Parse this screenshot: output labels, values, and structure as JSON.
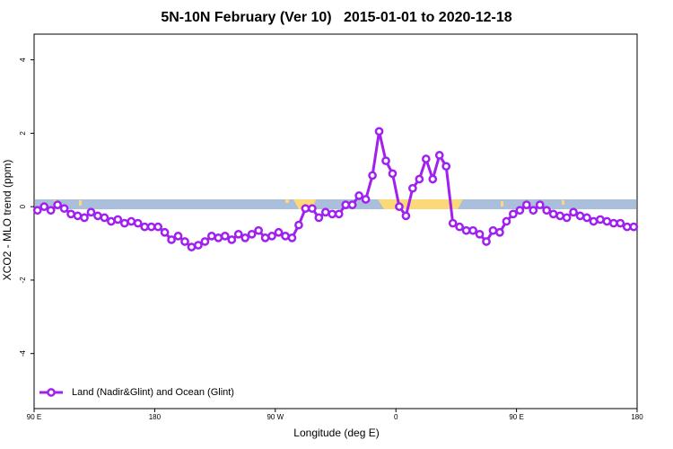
{
  "chart_data": {
    "type": "line",
    "title": "5N-10N February (Ver 10)   2015-01-01 to 2020-12-18",
    "x_label": "Longitude (deg E)",
    "y_label": "XCO2 - MLO trend (ppm)",
    "x": [
      92.5,
      97.5,
      102.5,
      107.5,
      112.5,
      117.5,
      122.5,
      127.5,
      132.5,
      137.5,
      142.5,
      147.5,
      152.5,
      157.5,
      162.5,
      167.5,
      172.5,
      177.5,
      182.5,
      187.5,
      192.5,
      197.5,
      202.5,
      207.5,
      212.5,
      217.5,
      222.5,
      227.5,
      232.5,
      237.5,
      242.5,
      247.5,
      252.5,
      257.5,
      262.5,
      267.5,
      272.5,
      277.5,
      282.5,
      287.5,
      292.5,
      297.5,
      302.5,
      307.5,
      312.5,
      317.5,
      322.5,
      327.5,
      332.5,
      337.5,
      342.5,
      347.5,
      352.5,
      357.5,
      362.5,
      367.5,
      372.5,
      377.5,
      382.5,
      387.5,
      392.5,
      397.5,
      402.5,
      407.5,
      412.5,
      417.5,
      422.5,
      427.5,
      432.5,
      437.5,
      442.5,
      447.5,
      452.5,
      457.5,
      462.5,
      467.5,
      472.5,
      477.5,
      482.5,
      487.5,
      492.5,
      497.5,
      502.5,
      507.5,
      512.5,
      517.5,
      522.5,
      527.5,
      532.5,
      537.5
    ],
    "series": [
      {
        "name": "Land (Nadir&Glint) and Ocean (Glint)",
        "color": "#a020f0",
        "values": [
          -0.1,
          0.0,
          -0.1,
          0.05,
          -0.05,
          -0.2,
          -0.25,
          -0.3,
          -0.15,
          -0.25,
          -0.3,
          -0.4,
          -0.35,
          -0.45,
          -0.4,
          -0.45,
          -0.55,
          -0.55,
          -0.55,
          -0.7,
          -0.9,
          -0.8,
          -0.95,
          -1.1,
          -1.05,
          -0.95,
          -0.8,
          -0.85,
          -0.8,
          -0.9,
          -0.75,
          -0.85,
          -0.75,
          -0.65,
          -0.85,
          -0.8,
          -0.7,
          -0.8,
          -0.85,
          -0.5,
          -0.05,
          -0.05,
          -0.3,
          -0.15,
          -0.2,
          -0.2,
          0.05,
          0.05,
          0.3,
          0.2,
          0.85,
          2.05,
          1.25,
          0.9,
          0.0,
          -0.25,
          0.5,
          0.75,
          1.3,
          0.75,
          1.4,
          1.1,
          -0.45,
          -0.55,
          -0.65,
          -0.65,
          -0.75,
          -0.95,
          -0.65,
          -0.7,
          -0.4,
          -0.2,
          -0.1,
          0.05,
          -0.1,
          0.05,
          -0.1,
          -0.2,
          -0.25,
          -0.3,
          -0.15,
          -0.25,
          -0.3,
          -0.4,
          -0.35,
          -0.4,
          -0.45,
          -0.45,
          -0.55,
          -0.55
        ]
      }
    ],
    "xlim": [
      90,
      540
    ],
    "xticks": [
      {
        "value": 90,
        "label": "90 E"
      },
      180,
      {
        "value": 270,
        "label": "90 W"
      },
      {
        "value": 360,
        "label": "0"
      },
      {
        "value": 450,
        "label": "90 E"
      },
      {
        "value": 540,
        "label": "180"
      }
    ],
    "ylim": [
      -5.5,
      4.7
    ],
    "yticks": [
      -4,
      -2,
      0,
      2,
      4
    ],
    "legend": "bottom-left"
  }
}
